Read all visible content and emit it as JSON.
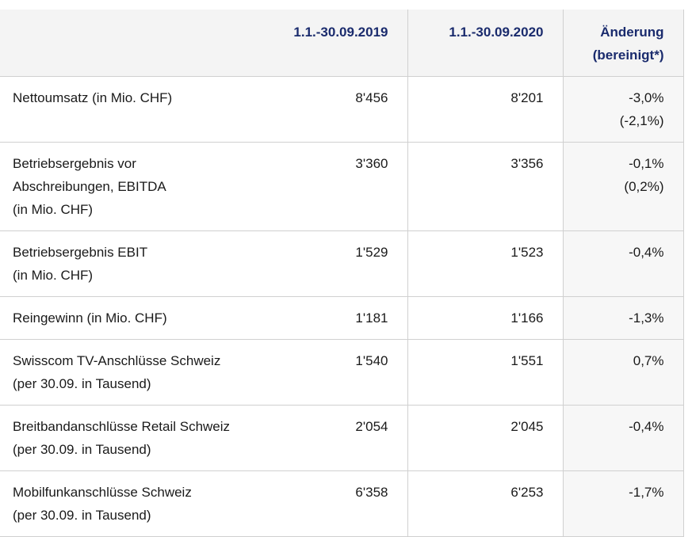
{
  "table": {
    "header": [
      [
        ""
      ],
      [
        "1.1.-30.09.2019"
      ],
      [
        "1.1.-30.09.2020"
      ],
      [
        "Änderung",
        "(bereinigt*)"
      ]
    ],
    "rows": [
      [
        [
          "Nettoumsatz (in Mio. CHF)"
        ],
        [
          "8'456"
        ],
        [
          "8'201"
        ],
        [
          "-3,0%",
          "(-2,1%)"
        ]
      ],
      [
        [
          "Betriebsergebnis vor",
          "Abschreibungen, EBITDA",
          "(in Mio. CHF)"
        ],
        [
          "3'360"
        ],
        [
          "3'356"
        ],
        [
          "-0,1%",
          "(0,2%)"
        ]
      ],
      [
        [
          "Betriebsergebnis EBIT",
          "(in Mio. CHF)"
        ],
        [
          "1'529"
        ],
        [
          "1'523"
        ],
        [
          "-0,4%"
        ]
      ],
      [
        [
          "Reingewinn (in Mio. CHF)"
        ],
        [
          "1'181"
        ],
        [
          "1'166"
        ],
        [
          "-1,3%"
        ]
      ],
      [
        [
          "Swisscom TV-Anschlüsse Schweiz",
          "(per 30.09. in Tausend)"
        ],
        [
          "1'540"
        ],
        [
          "1'551"
        ],
        [
          "0,7%"
        ]
      ],
      [
        [
          "Breitbandanschlüsse Retail Schweiz",
          "(per 30.09. in Tausend)"
        ],
        [
          "2'054"
        ],
        [
          "2'045"
        ],
        [
          "-0,4%"
        ]
      ],
      [
        [
          "Mobilfunkanschlüsse Schweiz",
          "(per 30.09. in Tausend)"
        ],
        [
          "6'358"
        ],
        [
          "6'253"
        ],
        [
          "-1,7%"
        ]
      ]
    ]
  }
}
